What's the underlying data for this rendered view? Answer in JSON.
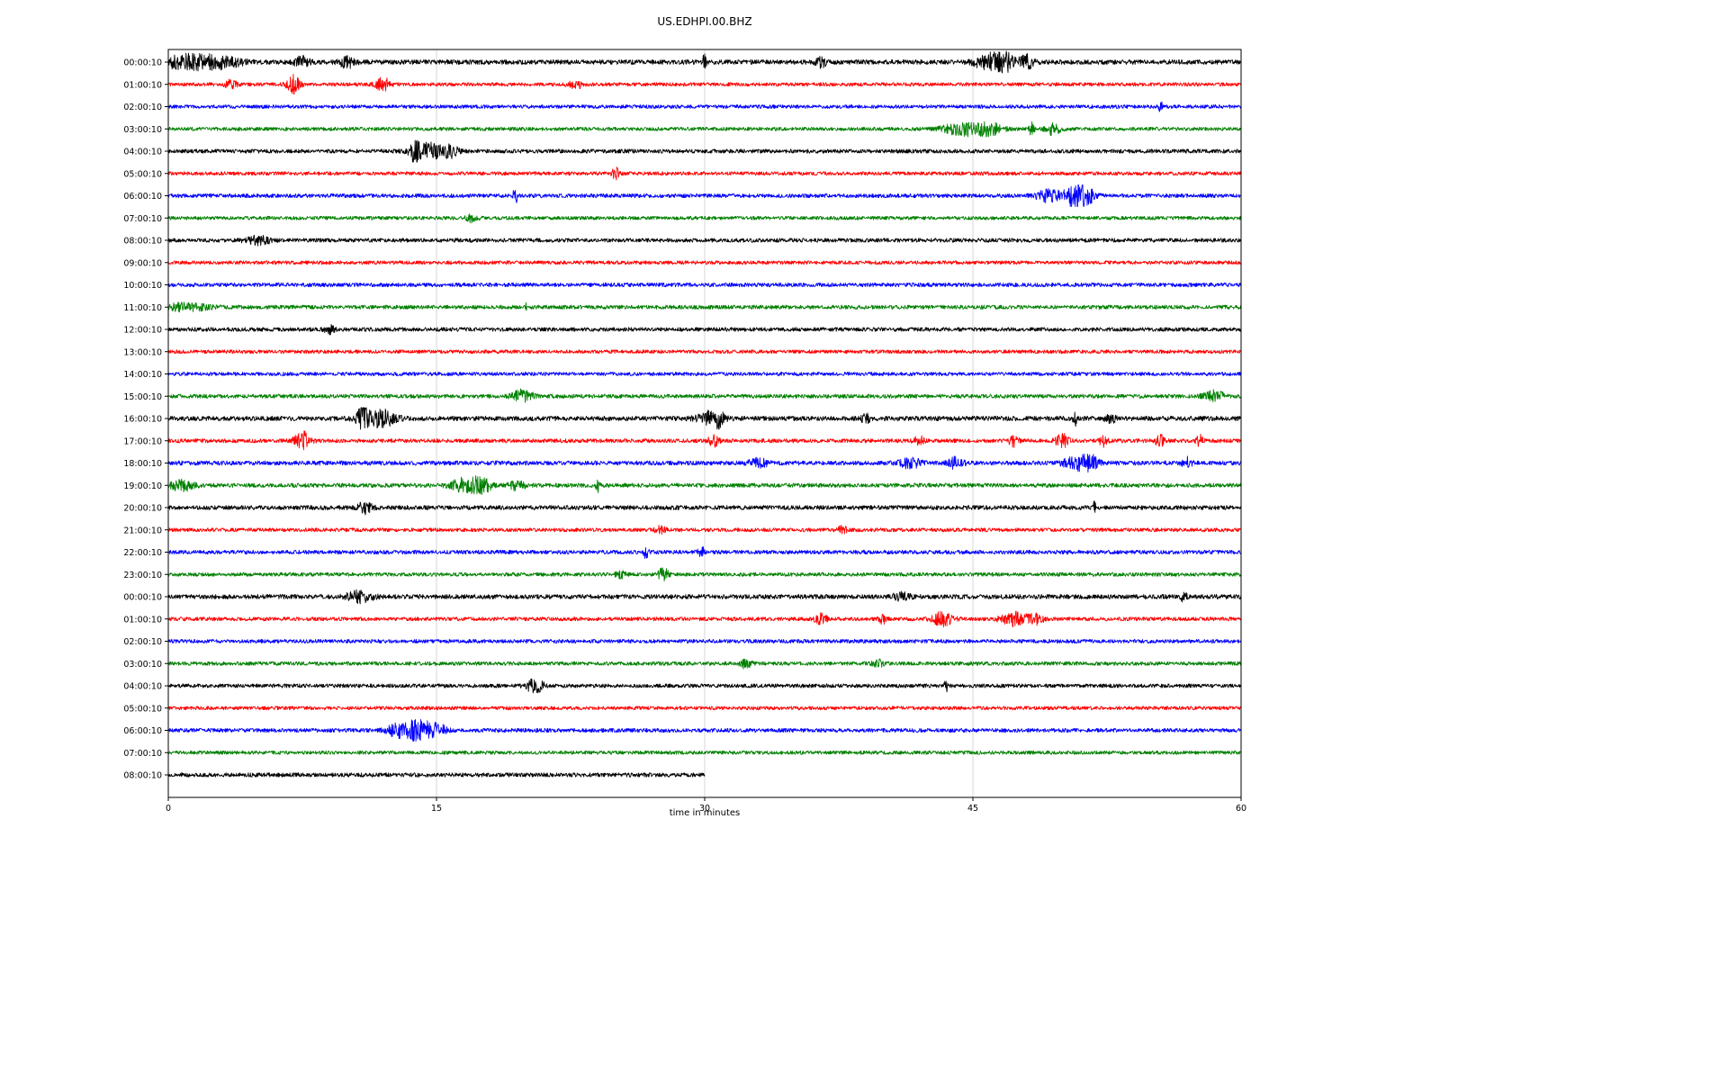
{
  "chart_data": {
    "type": "line",
    "subtype": "helicorder-dayplot",
    "title": "US.EDHPI.00.BHZ",
    "xlabel": "time in minutes",
    "x_range": [
      0,
      60
    ],
    "x_ticks": [
      0,
      15,
      30,
      45,
      60
    ],
    "grid": {
      "vertical_lines": [
        15,
        30,
        45
      ],
      "color": "#cdcdcd"
    },
    "color_cycle": [
      "#000000",
      "#ff0000",
      "#0000ff",
      "#008000"
    ],
    "legend": "none",
    "rows": [
      {
        "label": "00:00:10",
        "color": "#000000",
        "duration": 60,
        "noise": 2.6,
        "events": [
          {
            "t": 1,
            "amp": 5,
            "dur": 1.2
          },
          {
            "t": 3,
            "amp": 3.5,
            "dur": 0.8
          },
          {
            "t": 7.5,
            "amp": 4,
            "dur": 0.3
          },
          {
            "t": 10,
            "amp": 4,
            "dur": 0.3
          },
          {
            "t": 30,
            "amp": 9,
            "dur": 0.06
          },
          {
            "t": 36.5,
            "amp": 3.5,
            "dur": 0.2
          },
          {
            "t": 45.8,
            "amp": 6,
            "dur": 0.5
          },
          {
            "t": 46.8,
            "amp": 7,
            "dur": 0.4
          },
          {
            "t": 48,
            "amp": 5,
            "dur": 0.3
          }
        ]
      },
      {
        "label": "01:00:10",
        "color": "#ff0000",
        "duration": 60,
        "noise": 2.0,
        "events": [
          {
            "t": 3.5,
            "amp": 4,
            "dur": 0.2
          },
          {
            "t": 7,
            "amp": 7,
            "dur": 0.25
          },
          {
            "t": 12,
            "amp": 5,
            "dur": 0.3
          },
          {
            "t": 22.8,
            "amp": 3,
            "dur": 0.3
          }
        ]
      },
      {
        "label": "02:00:10",
        "color": "#0000ff",
        "duration": 60,
        "noise": 2.0,
        "events": [
          {
            "t": 55.5,
            "amp": 4.5,
            "dur": 0.07
          }
        ]
      },
      {
        "label": "03:00:10",
        "color": "#008000",
        "duration": 60,
        "noise": 2.0,
        "events": [
          {
            "t": 44.5,
            "amp": 5,
            "dur": 0.8
          },
          {
            "t": 46,
            "amp": 4,
            "dur": 0.5
          },
          {
            "t": 48.3,
            "amp": 8,
            "dur": 0.09
          },
          {
            "t": 49.5,
            "amp": 4.5,
            "dur": 0.3
          }
        ]
      },
      {
        "label": "04:00:10",
        "color": "#000000",
        "duration": 60,
        "noise": 2.2,
        "events": [
          {
            "t": 13.8,
            "amp": 12,
            "dur": 0.12
          },
          {
            "t": 14.5,
            "amp": 6,
            "dur": 0.7
          },
          {
            "t": 15.8,
            "amp": 4,
            "dur": 0.3
          }
        ]
      },
      {
        "label": "05:00:10",
        "color": "#ff0000",
        "duration": 60,
        "noise": 2.0,
        "events": [
          {
            "t": 25,
            "amp": 4.5,
            "dur": 0.15
          }
        ]
      },
      {
        "label": "06:00:10",
        "color": "#0000ff",
        "duration": 60,
        "noise": 2.2,
        "events": [
          {
            "t": 19.4,
            "amp": 6,
            "dur": 0.09
          },
          {
            "t": 49.3,
            "amp": 5,
            "dur": 0.5
          },
          {
            "t": 50.7,
            "amp": 10,
            "dur": 0.35
          },
          {
            "t": 51.4,
            "amp": 6,
            "dur": 0.3
          }
        ]
      },
      {
        "label": "07:00:10",
        "color": "#008000",
        "duration": 60,
        "noise": 2.0,
        "events": [
          {
            "t": 17,
            "amp": 3,
            "dur": 0.2
          }
        ]
      },
      {
        "label": "08:00:10",
        "color": "#000000",
        "duration": 60,
        "noise": 2.2,
        "events": [
          {
            "t": 5,
            "amp": 3,
            "dur": 0.5
          }
        ]
      },
      {
        "label": "09:00:10",
        "color": "#ff0000",
        "duration": 60,
        "noise": 2.0,
        "events": []
      },
      {
        "label": "10:00:10",
        "color": "#0000ff",
        "duration": 60,
        "noise": 2.2,
        "events": []
      },
      {
        "label": "11:00:10",
        "color": "#008000",
        "duration": 60,
        "noise": 2.2,
        "events": [
          {
            "t": 1,
            "amp": 3,
            "dur": 0.8
          },
          {
            "t": 20,
            "amp": 5,
            "dur": 0.05
          }
        ]
      },
      {
        "label": "12:00:10",
        "color": "#000000",
        "duration": 60,
        "noise": 2.2,
        "events": [
          {
            "t": 9,
            "amp": 3,
            "dur": 0.2
          }
        ]
      },
      {
        "label": "13:00:10",
        "color": "#ff0000",
        "duration": 60,
        "noise": 2.0,
        "events": []
      },
      {
        "label": "14:00:10",
        "color": "#0000ff",
        "duration": 60,
        "noise": 2.0,
        "events": []
      },
      {
        "label": "15:00:10",
        "color": "#008000",
        "duration": 60,
        "noise": 2.2,
        "events": [
          {
            "t": 19.8,
            "amp": 4.5,
            "dur": 0.4
          },
          {
            "t": 58.5,
            "amp": 4,
            "dur": 0.4
          }
        ]
      },
      {
        "label": "16:00:10",
        "color": "#000000",
        "duration": 60,
        "noise": 2.6,
        "events": [
          {
            "t": 10.8,
            "amp": 12,
            "dur": 0.15
          },
          {
            "t": 11.4,
            "amp": 6,
            "dur": 0.5
          },
          {
            "t": 12.3,
            "amp": 4,
            "dur": 0.4
          },
          {
            "t": 30.3,
            "amp": 5,
            "dur": 0.5
          },
          {
            "t": 30.8,
            "amp": 4,
            "dur": 0.2
          },
          {
            "t": 39,
            "amp": 4,
            "dur": 0.15
          },
          {
            "t": 50.7,
            "amp": 7,
            "dur": 0.06
          },
          {
            "t": 52.7,
            "amp": 4,
            "dur": 0.2
          }
        ]
      },
      {
        "label": "17:00:10",
        "color": "#ff0000",
        "duration": 60,
        "noise": 2.2,
        "events": [
          {
            "t": 7.5,
            "amp": 7,
            "dur": 0.3
          },
          {
            "t": 30.5,
            "amp": 4,
            "dur": 0.2
          },
          {
            "t": 42,
            "amp": 4,
            "dur": 0.2
          },
          {
            "t": 47.3,
            "amp": 4,
            "dur": 0.2
          },
          {
            "t": 50,
            "amp": 5,
            "dur": 0.25
          },
          {
            "t": 52.3,
            "amp": 4,
            "dur": 0.15
          },
          {
            "t": 55.5,
            "amp": 4,
            "dur": 0.2
          },
          {
            "t": 57.7,
            "amp": 4,
            "dur": 0.15
          }
        ]
      },
      {
        "label": "18:00:10",
        "color": "#0000ff",
        "duration": 60,
        "noise": 2.4,
        "events": [
          {
            "t": 33,
            "amp": 3,
            "dur": 0.4
          },
          {
            "t": 41.5,
            "amp": 4,
            "dur": 0.4
          },
          {
            "t": 44,
            "amp": 4,
            "dur": 0.3
          },
          {
            "t": 50.8,
            "amp": 5,
            "dur": 0.5
          },
          {
            "t": 51.6,
            "amp": 5,
            "dur": 0.3
          },
          {
            "t": 57,
            "amp": 4,
            "dur": 0.2
          }
        ]
      },
      {
        "label": "19:00:10",
        "color": "#008000",
        "duration": 60,
        "noise": 2.3,
        "events": [
          {
            "t": 0.8,
            "amp": 4,
            "dur": 0.5
          },
          {
            "t": 16.5,
            "amp": 5,
            "dur": 0.5
          },
          {
            "t": 17.5,
            "amp": 6,
            "dur": 0.4
          },
          {
            "t": 19.5,
            "amp": 3.5,
            "dur": 0.3
          },
          {
            "t": 24,
            "amp": 6,
            "dur": 0.07
          }
        ]
      },
      {
        "label": "20:00:10",
        "color": "#000000",
        "duration": 60,
        "noise": 2.4,
        "events": [
          {
            "t": 11,
            "amp": 4,
            "dur": 0.3
          },
          {
            "t": 51.8,
            "amp": 7,
            "dur": 0.05
          }
        ]
      },
      {
        "label": "21:00:10",
        "color": "#ff0000",
        "duration": 60,
        "noise": 2.1,
        "events": [
          {
            "t": 27.5,
            "amp": 3,
            "dur": 0.2
          },
          {
            "t": 37.7,
            "amp": 4,
            "dur": 0.15
          }
        ]
      },
      {
        "label": "22:00:10",
        "color": "#0000ff",
        "duration": 60,
        "noise": 2.2,
        "events": [
          {
            "t": 26.7,
            "amp": 5,
            "dur": 0.09
          },
          {
            "t": 29.8,
            "amp": 4,
            "dur": 0.15
          }
        ]
      },
      {
        "label": "23:00:10",
        "color": "#008000",
        "duration": 60,
        "noise": 2.1,
        "events": [
          {
            "t": 25.3,
            "amp": 3,
            "dur": 0.2
          },
          {
            "t": 27.7,
            "amp": 5,
            "dur": 0.2
          }
        ]
      },
      {
        "label": "00:00:10",
        "color": "#000000",
        "duration": 60,
        "noise": 2.5,
        "events": [
          {
            "t": 10.7,
            "amp": 4,
            "dur": 0.5
          },
          {
            "t": 41,
            "amp": 3,
            "dur": 0.3
          },
          {
            "t": 56.8,
            "amp": 5,
            "dur": 0.09
          }
        ]
      },
      {
        "label": "01:00:10",
        "color": "#ff0000",
        "duration": 60,
        "noise": 2.1,
        "events": [
          {
            "t": 36.5,
            "amp": 6,
            "dur": 0.2
          },
          {
            "t": 40,
            "amp": 4,
            "dur": 0.15
          },
          {
            "t": 43.3,
            "amp": 5,
            "dur": 0.4
          },
          {
            "t": 47.3,
            "amp": 5,
            "dur": 0.5
          },
          {
            "t": 48.5,
            "amp": 4,
            "dur": 0.3
          }
        ]
      },
      {
        "label": "02:00:10",
        "color": "#0000ff",
        "duration": 60,
        "noise": 2.1,
        "events": []
      },
      {
        "label": "03:00:10",
        "color": "#008000",
        "duration": 60,
        "noise": 2.1,
        "events": [
          {
            "t": 32.3,
            "amp": 4,
            "dur": 0.2
          },
          {
            "t": 39.7,
            "amp": 3,
            "dur": 0.2
          }
        ]
      },
      {
        "label": "04:00:10",
        "color": "#000000",
        "duration": 60,
        "noise": 2.1,
        "events": [
          {
            "t": 20.5,
            "amp": 5,
            "dur": 0.35
          },
          {
            "t": 43.5,
            "amp": 5,
            "dur": 0.07
          }
        ]
      },
      {
        "label": "05:00:10",
        "color": "#ff0000",
        "duration": 60,
        "noise": 2.0,
        "events": []
      },
      {
        "label": "06:00:10",
        "color": "#0000ff",
        "duration": 60,
        "noise": 2.2,
        "events": [
          {
            "t": 13,
            "amp": 6,
            "dur": 0.5
          },
          {
            "t": 13.8,
            "amp": 11,
            "dur": 0.2
          },
          {
            "t": 14.4,
            "amp": 6,
            "dur": 0.4
          },
          {
            "t": 15.2,
            "amp": 4,
            "dur": 0.3
          }
        ]
      },
      {
        "label": "07:00:10",
        "color": "#008000",
        "duration": 60,
        "noise": 2.0,
        "events": []
      },
      {
        "label": "08:00:10",
        "color": "#000000",
        "duration": 30,
        "noise": 2.3,
        "events": []
      }
    ]
  }
}
